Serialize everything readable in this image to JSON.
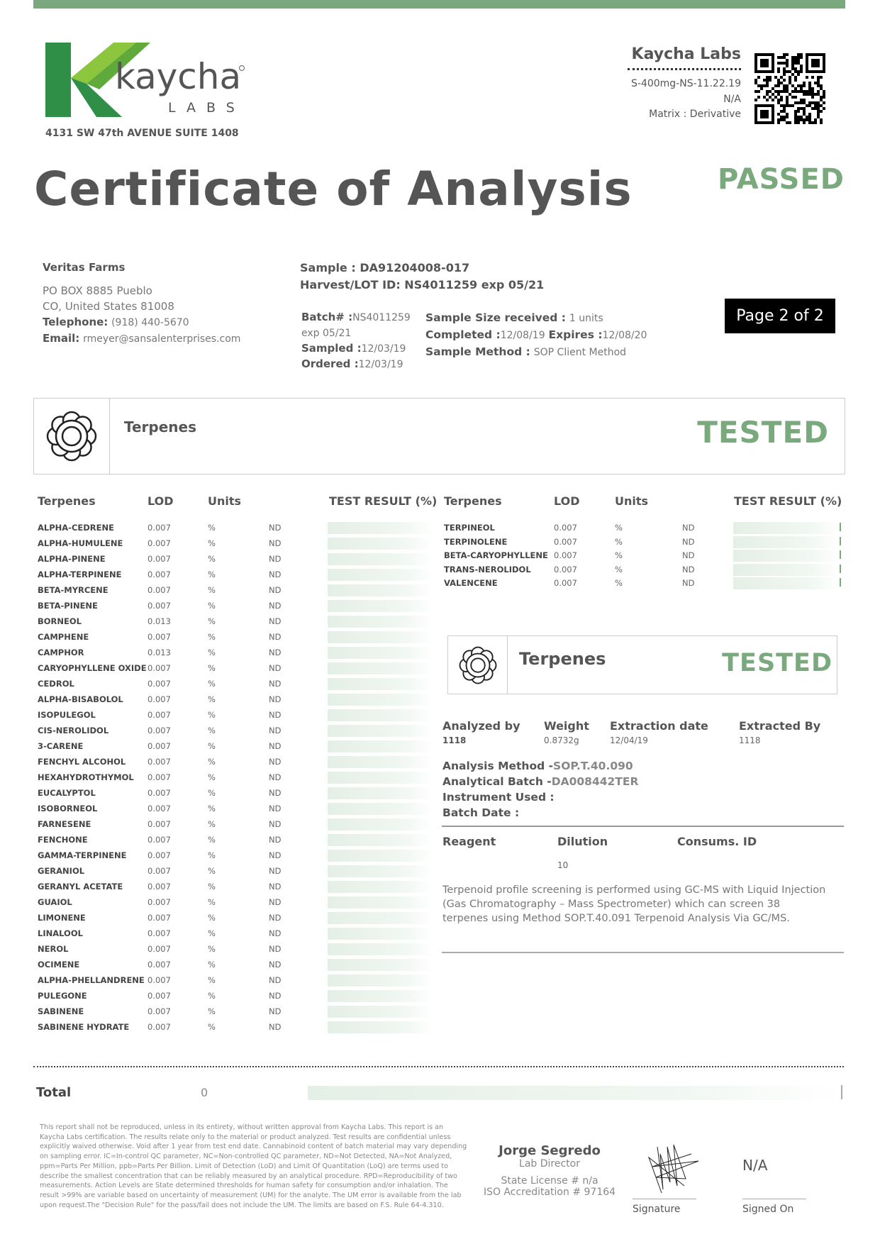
{
  "colors": {
    "accent_green": "#7aa97e",
    "logo_dark_green": "#2f8f46",
    "logo_light_green": "#8cc63f",
    "text_gray": "#555555"
  },
  "header": {
    "logo": {
      "brand": "kaycha",
      "sub": "LABS"
    },
    "address": "4131 SW 47th AVENUE SUITE 1408",
    "lab_name": "Kaycha Labs",
    "product": "S-400mg-NS-11.22.19",
    "na": "N/A",
    "matrix": "Matrix : Derivative",
    "qr_icon": "qr-code-icon"
  },
  "title": "Certificate of Analysis",
  "status": "PASSED",
  "client": {
    "name": "Veritas Farms",
    "address1": "PO BOX 8885 Pueblo",
    "address2": "CO, United States 81008",
    "telephone_label": "Telephone:",
    "telephone": "(918) 440-5670",
    "email_label": "Email:",
    "email": "rmeyer@sansalenterprises.com"
  },
  "sample": {
    "sample_label": "Sample :",
    "sample_id": "DA91204008-017",
    "lot_label": "Harvest/LOT ID:",
    "lot_id": "NS4011259 exp 05/21",
    "batch_label": "Batch# :",
    "batch": "NS4011259 exp 05/21",
    "sampled_label": "Sampled :",
    "sampled": "12/03/19",
    "ordered_label": "Ordered :",
    "ordered": "12/03/19",
    "size_label": "Sample Size received :",
    "size": "1 units",
    "completed_label": "Completed :",
    "completed": "12/08/19",
    "expires_label": "Expires :",
    "expires": "12/08/20",
    "method_label": "Sample Method :",
    "method": "SOP Client Method"
  },
  "page_indicator": "Page 2 of 2",
  "panel": {
    "title": "Terpenes",
    "status": "TESTED",
    "icon": "flower-icon"
  },
  "table": {
    "headers": [
      "Terpenes",
      "LOD",
      "Units",
      "TEST RESULT (%)"
    ],
    "left_rows": [
      {
        "name": "ALPHA-CEDRENE",
        "lod": "0.007",
        "units": "%",
        "result": "ND"
      },
      {
        "name": "ALPHA-HUMULENE",
        "lod": "0.007",
        "units": "%",
        "result": "ND"
      },
      {
        "name": "ALPHA-PINENE",
        "lod": "0.007",
        "units": "%",
        "result": "ND"
      },
      {
        "name": "ALPHA-TERPINENE",
        "lod": "0.007",
        "units": "%",
        "result": "ND"
      },
      {
        "name": "BETA-MYRCENE",
        "lod": "0.007",
        "units": "%",
        "result": "ND"
      },
      {
        "name": "BETA-PINENE",
        "lod": "0.007",
        "units": "%",
        "result": "ND"
      },
      {
        "name": "BORNEOL",
        "lod": "0.013",
        "units": "%",
        "result": "ND"
      },
      {
        "name": "CAMPHENE",
        "lod": "0.007",
        "units": "%",
        "result": "ND"
      },
      {
        "name": "CAMPHOR",
        "lod": "0.013",
        "units": "%",
        "result": "ND"
      },
      {
        "name": "CARYOPHYLLENE OXIDE",
        "lod": "0.007",
        "units": "%",
        "result": "ND"
      },
      {
        "name": "CEDROL",
        "lod": "0.007",
        "units": "%",
        "result": "ND"
      },
      {
        "name": "ALPHA-BISABOLOL",
        "lod": "0.007",
        "units": "%",
        "result": "ND"
      },
      {
        "name": "ISOPULEGOL",
        "lod": "0.007",
        "units": "%",
        "result": "ND"
      },
      {
        "name": "CIS-NEROLIDOL",
        "lod": "0.007",
        "units": "%",
        "result": "ND"
      },
      {
        "name": "3-CARENE",
        "lod": "0.007",
        "units": "%",
        "result": "ND"
      },
      {
        "name": "FENCHYL ALCOHOL",
        "lod": "0.007",
        "units": "%",
        "result": "ND"
      },
      {
        "name": "HEXAHYDROTHYMOL",
        "lod": "0.007",
        "units": "%",
        "result": "ND"
      },
      {
        "name": "EUCALYPTOL",
        "lod": "0.007",
        "units": "%",
        "result": "ND"
      },
      {
        "name": "ISOBORNEOL",
        "lod": "0.007",
        "units": "%",
        "result": "ND"
      },
      {
        "name": "FARNESENE",
        "lod": "0.007",
        "units": "%",
        "result": "ND"
      },
      {
        "name": "FENCHONE",
        "lod": "0.007",
        "units": "%",
        "result": "ND"
      },
      {
        "name": "GAMMA-TERPINENE",
        "lod": "0.007",
        "units": "%",
        "result": "ND"
      },
      {
        "name": "GERANIOL",
        "lod": "0.007",
        "units": "%",
        "result": "ND"
      },
      {
        "name": "GERANYL ACETATE",
        "lod": "0.007",
        "units": "%",
        "result": "ND"
      },
      {
        "name": "GUAIOL",
        "lod": "0.007",
        "units": "%",
        "result": "ND"
      },
      {
        "name": "LIMONENE",
        "lod": "0.007",
        "units": "%",
        "result": "ND"
      },
      {
        "name": "LINALOOL",
        "lod": "0.007",
        "units": "%",
        "result": "ND"
      },
      {
        "name": "NEROL",
        "lod": "0.007",
        "units": "%",
        "result": "ND"
      },
      {
        "name": "OCIMENE",
        "lod": "0.007",
        "units": "%",
        "result": "ND"
      },
      {
        "name": "ALPHA-PHELLANDRENE",
        "lod": "0.007",
        "units": "%",
        "result": "ND"
      },
      {
        "name": "PULEGONE",
        "lod": "0.007",
        "units": "%",
        "result": "ND"
      },
      {
        "name": "SABINENE",
        "lod": "0.007",
        "units": "%",
        "result": "ND"
      },
      {
        "name": "SABINENE HYDRATE",
        "lod": "0.007",
        "units": "%",
        "result": "ND"
      }
    ],
    "right_rows": [
      {
        "name": "TERPINEOL",
        "lod": "0.007",
        "units": "%",
        "result": "ND"
      },
      {
        "name": "TERPINOLENE",
        "lod": "0.007",
        "units": "%",
        "result": "ND"
      },
      {
        "name": "BETA-CARYOPHYLLENE",
        "lod": "0.007",
        "units": "%",
        "result": "ND"
      },
      {
        "name": "TRANS-NEROLIDOL",
        "lod": "0.007",
        "units": "%",
        "result": "ND"
      },
      {
        "name": "VALENCENE",
        "lod": "0.007",
        "units": "%",
        "result": "ND"
      }
    ]
  },
  "analysis": {
    "headers": [
      "Analyzed by",
      "Weight",
      "Extraction date",
      "Extracted By"
    ],
    "values": [
      "1118",
      "0.8732g",
      "12/04/19",
      "1118"
    ],
    "method_label": "Analysis Method -",
    "method": "SOP.T.40.090",
    "batch_label": "Analytical Batch -",
    "batch": "DA008442TER",
    "instrument_label": "Instrument Used :",
    "batch_date_label": "Batch Date :",
    "reagent_headers": [
      "Reagent",
      "Dilution",
      "Consums. ID"
    ],
    "dilution": "10",
    "description": "Terpenoid profile screening is performed using GC-MS with Liquid Injection (Gas Chromatography – Mass Spectrometer) which can screen 38 terpenes using Method SOP.T.40.091 Terpenoid Analysis Via GC/MS."
  },
  "total": {
    "label": "Total",
    "value": "0"
  },
  "footer": {
    "disclaimer": "This report shall not be reproduced, unless in its entirety, without written approval from Kaycha Labs. This report is an Kaycha Labs certification. The results relate only to the material or product analyzed. Test results are confidential unless explicitly waived otherwise. Void after 1 year from test end date. Cannabinoid content of batch material may vary depending on sampling error. IC=In-control QC parameter, NC=Non-controlled QC parameter, ND=Not Detected, NA=Not Analyzed, ppm=Parts Per Million, ppb=Parts Per Billion. Limit of Detection (LoD) and Limit Of Quantitation (LoQ) are terms used to describe the smallest concentration that can be reliably measured by an analytical procedure. RPD=Reproducibility of two measurements. Action Levels are State determined thresholds for human safety for consumption and/or inhalation. The result >99% are variable based on uncertainty of measurement (UM) for the analyte. The UM error is available from the lab upon request.The \"Decision Rule\" for the pass/fail does not include the UM. The limits are based on F.S. Rule 64-4.310.",
    "director_name": "Jorge Segredo",
    "director_title": "Lab Director",
    "state_license": "State License # n/a",
    "iso": "ISO Accreditation # 97164",
    "signature_label": "Signature",
    "signed_on_value": "N/A",
    "signed_on_label": "Signed On"
  }
}
